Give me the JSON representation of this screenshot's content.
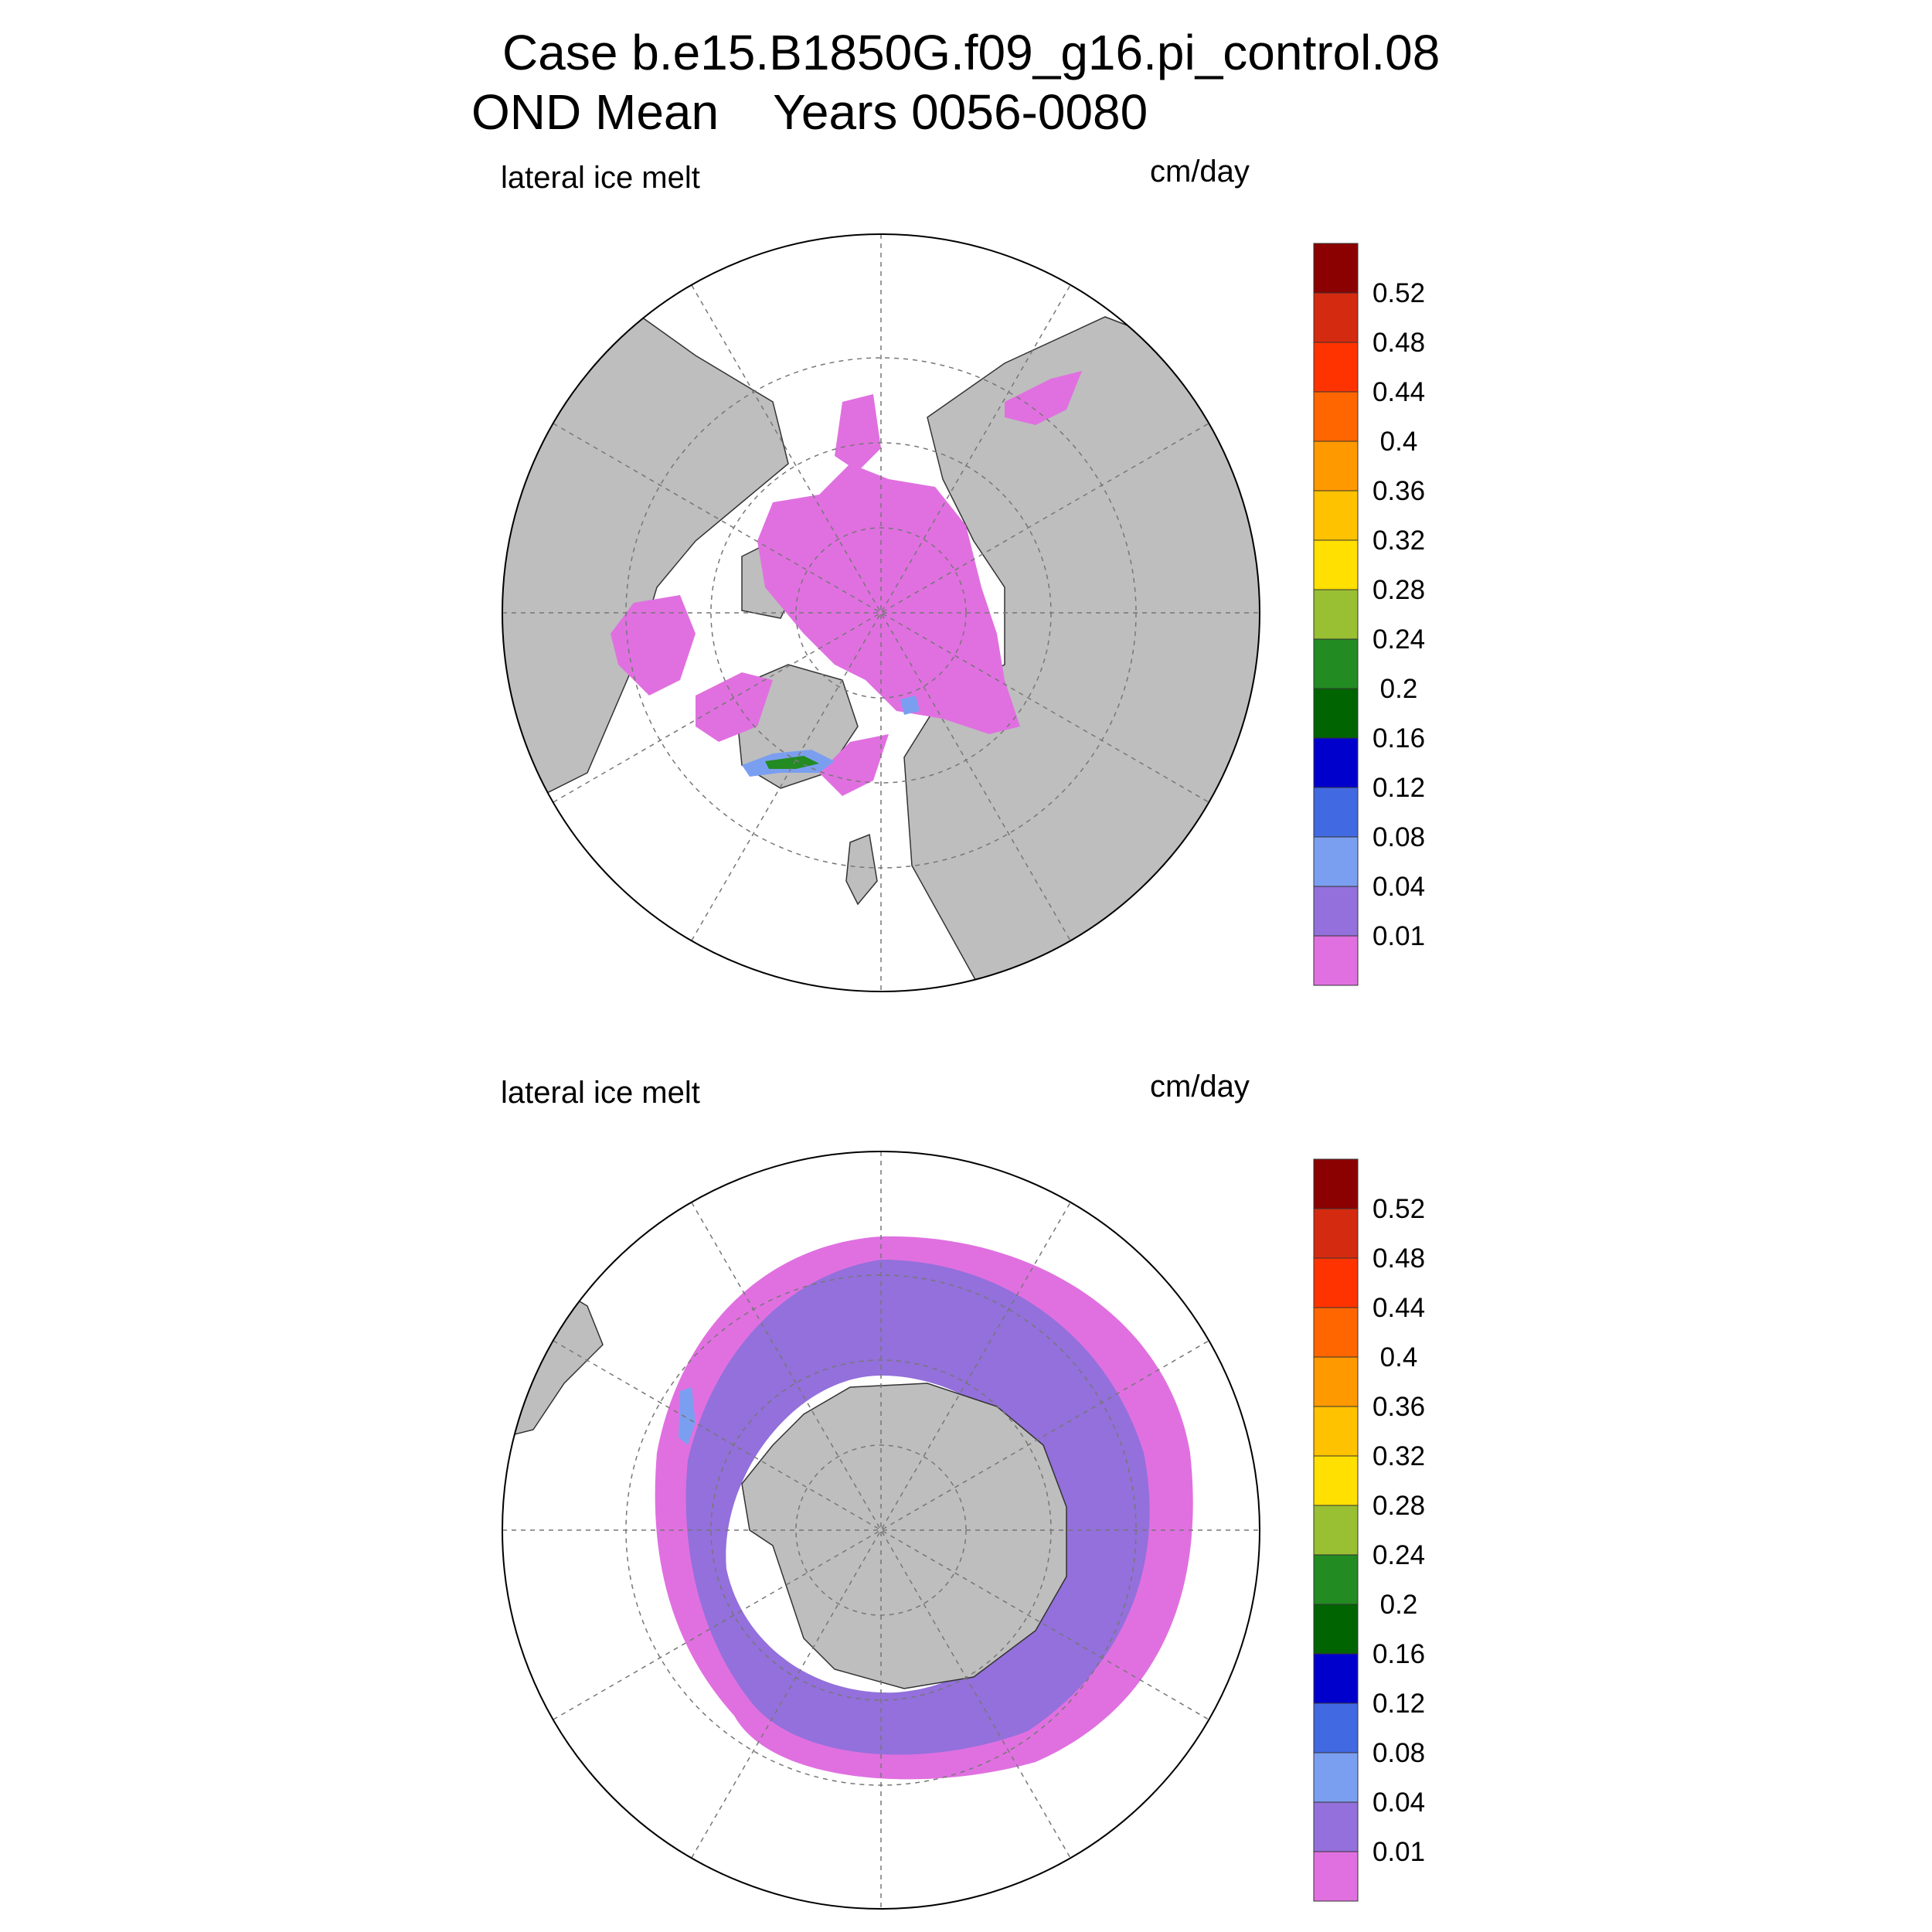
{
  "title": {
    "line1": "Case b.e15.B1850G.f09_g16.pi_control.08",
    "line2": "OND Mean    Years 0056-0080"
  },
  "panels": [
    {
      "id": "north",
      "left_label": "lateral ice melt",
      "units": "cm/day"
    },
    {
      "id": "south",
      "left_label": "lateral ice melt",
      "units": "cm/day"
    }
  ],
  "colorbar": {
    "labels": [
      "0.52",
      "0.48",
      "0.44",
      "0.4",
      "0.36",
      "0.32",
      "0.28",
      "0.24",
      "0.2",
      "0.16",
      "0.12",
      "0.08",
      "0.04",
      "0.01"
    ],
    "colors_top_to_bottom": [
      "#8b0000",
      "#d42a10",
      "#ff3300",
      "#ff6600",
      "#ff9900",
      "#ffc200",
      "#ffe000",
      "#99bf33",
      "#228b22",
      "#006400",
      "#0000cd",
      "#4169e1",
      "#7b9ff0",
      "#9370db",
      "#e070e0"
    ]
  },
  "colors": {
    "land": "#bebebe",
    "ocean": "#ffffff",
    "ice_melt_low": "#e070e0",
    "ice_melt_mid": "#9370db",
    "grid": "#777777"
  }
}
